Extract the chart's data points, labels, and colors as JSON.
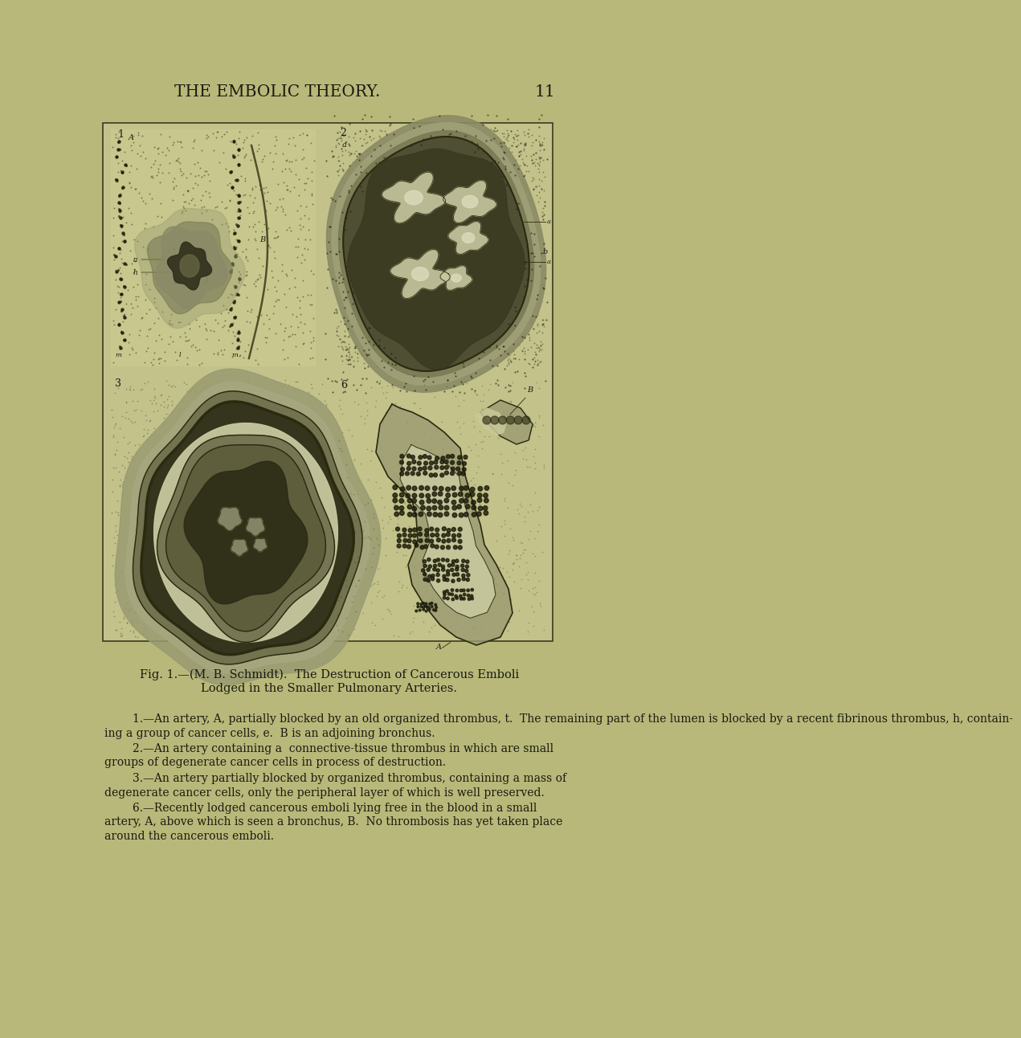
{
  "bg_color": "#b8b87a",
  "page_color": "#b5b572",
  "text_color": "#1a1a10",
  "header_text": "THE EMBOLIC THEORY.",
  "page_number": "11",
  "fig_frame_color": "#5a5a3a",
  "fig_inner_bg": "#c8c88a",
  "caption_line1": "Fig. 1.—(M. B. Schmidt).  The Destruction of Cancerous Emboli",
  "caption_line2": "Lodged in the Smaller Pulmonary Arteries.",
  "body_paragraphs": [
    "1.—An artery, A, partially blocked by an old organized thrombus, t.  The remaining part of the lumen is blocked by a recent fibrinous thrombus, h, contain-\ning a group of cancer cells, e.  B is an adjoining bronchus.",
    "2.—An artery containing a  connective-tissue thrombus in which are small\ngroups of degenerate cancer cells in process of destruction.",
    "3.—An artery partially blocked by organized thrombus, containing a mass of\ndegenerate cancer cells, only the peripheral layer of which is well preserved.",
    "6.—Recently lodged cancerous emboli lying free in the blood in a small\nartery, A, above which is seen a bronchus, B.  No thrombosis has yet taken place\naround the cancerous emboli."
  ]
}
